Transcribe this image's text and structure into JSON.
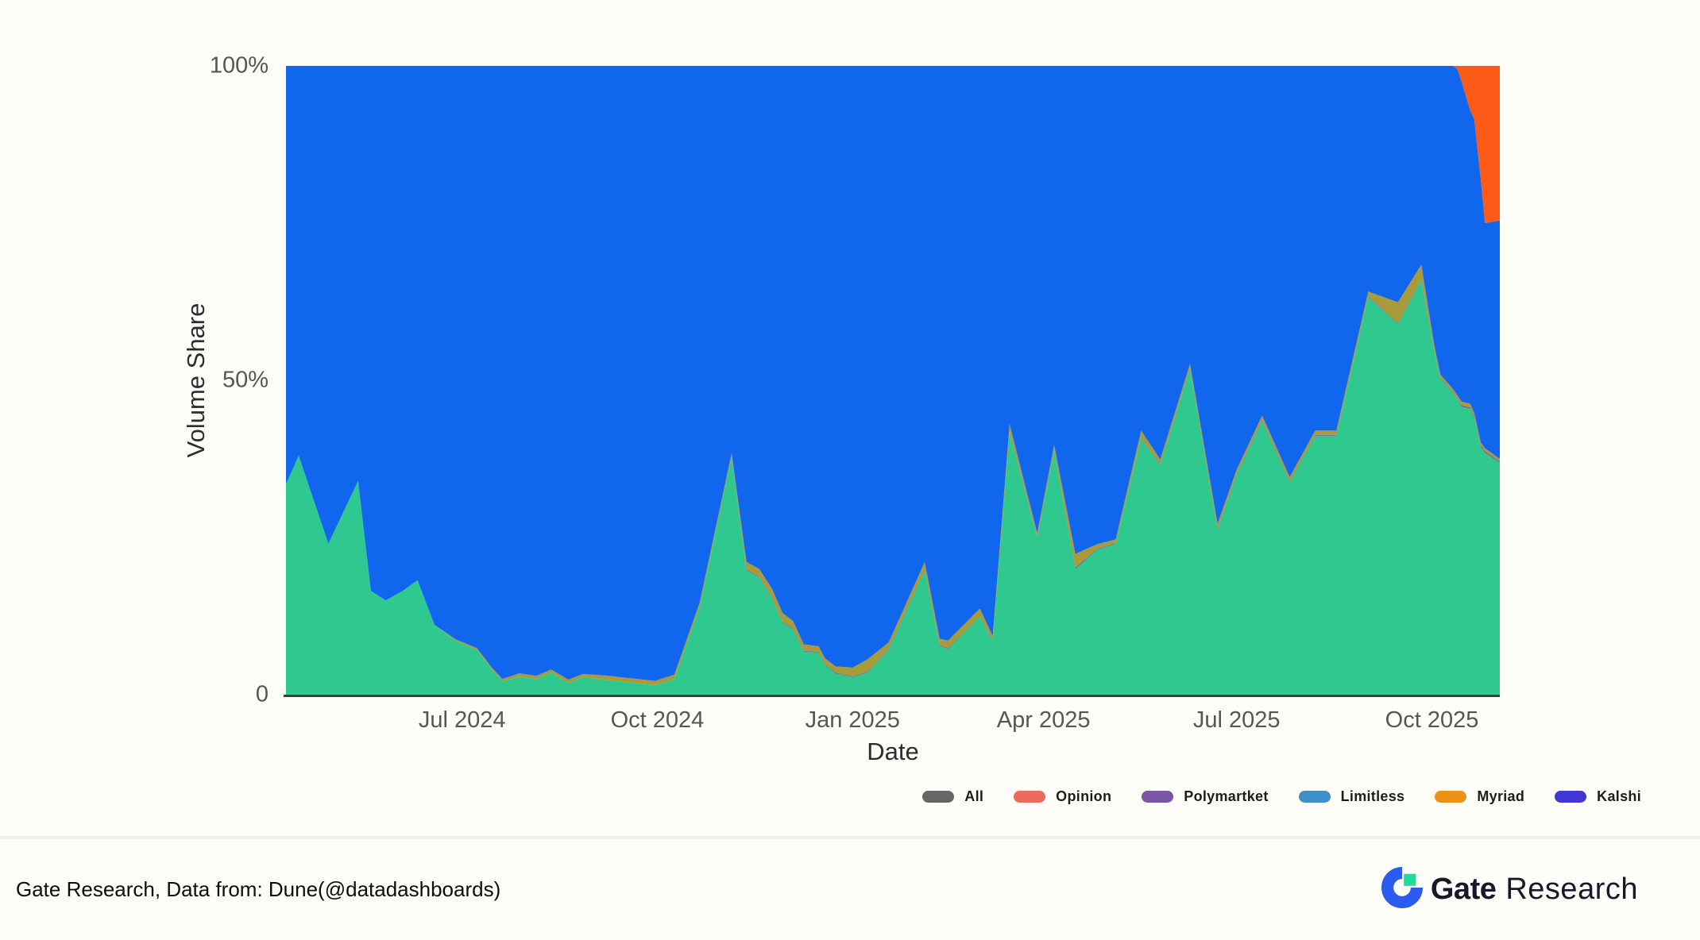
{
  "page": {
    "background_color": "#fffdf8"
  },
  "chart": {
    "y_axis": {
      "title": "Volume Share",
      "ticks": [
        {
          "label": "100%",
          "value": 100
        },
        {
          "label": "50%",
          "value": 50
        },
        {
          "label": "0",
          "value": 0
        }
      ]
    },
    "x_axis": {
      "title": "Date",
      "ticks": [
        {
          "label": "Jul 2024",
          "date": "2024-07-01"
        },
        {
          "label": "Oct 2024",
          "date": "2024-10-01"
        },
        {
          "label": "Jan 2025",
          "date": "2025-01-01"
        },
        {
          "label": "Apr 2025",
          "date": "2025-04-01"
        },
        {
          "label": "Jul 2025",
          "date": "2025-07-01"
        },
        {
          "label": "Oct 2025",
          "date": "2025-10-01"
        }
      ]
    }
  },
  "legend": {
    "items": [
      {
        "label": "All",
        "color": "#666666"
      },
      {
        "label": "Opinion",
        "color": "#ee6a5f"
      },
      {
        "label": "Polymartket",
        "color": "#7d55a6"
      },
      {
        "label": "Limitless",
        "color": "#3e90c6"
      },
      {
        "label": "Myriad",
        "color": "#ec9214"
      },
      {
        "label": "Kalshi",
        "color": "#4336d6"
      }
    ]
  },
  "footer": {
    "source_text": "Gate Research, Data from: Dune(@datadashboards)",
    "brand_bold": "Gate",
    "brand_regular": "Research"
  },
  "chart_data": {
    "type": "area",
    "stacked": true,
    "normalized": "percent",
    "ylim": [
      0,
      100
    ],
    "grid": false,
    "legend_position": "bottom-right",
    "stack_order": "bottom-to-top",
    "x_domain": [
      "2024-04-09",
      "2025-11-02"
    ],
    "x": [
      "2024-04-09",
      "2024-04-15",
      "2024-04-29",
      "2024-05-13",
      "2024-05-19",
      "2024-05-26",
      "2024-06-03",
      "2024-06-10",
      "2024-06-18",
      "2024-06-28",
      "2024-07-08",
      "2024-07-15",
      "2024-07-20",
      "2024-07-28",
      "2024-08-05",
      "2024-08-12",
      "2024-08-20",
      "2024-08-27",
      "2024-09-08",
      "2024-09-30",
      "2024-10-09",
      "2024-10-21",
      "2024-11-05",
      "2024-11-12",
      "2024-11-18",
      "2024-11-24",
      "2024-11-29",
      "2024-12-04",
      "2024-12-09",
      "2024-12-16",
      "2024-12-19",
      "2024-12-24",
      "2025-01-01",
      "2025-01-08",
      "2025-01-18",
      "2025-02-04",
      "2025-02-11",
      "2025-02-15",
      "2025-03-02",
      "2025-03-08",
      "2025-03-16",
      "2025-03-29",
      "2025-04-06",
      "2025-04-16",
      "2025-04-26",
      "2025-05-05",
      "2025-05-17",
      "2025-05-26",
      "2025-06-09",
      "2025-06-22",
      "2025-07-01",
      "2025-07-13",
      "2025-07-26",
      "2025-08-07",
      "2025-08-17",
      "2025-09-01",
      "2025-09-15",
      "2025-09-26",
      "2025-10-02",
      "2025-10-05",
      "2025-10-11",
      "2025-10-13",
      "2025-10-15",
      "2025-10-19",
      "2025-10-21",
      "2025-10-24",
      "2025-10-26",
      "2025-11-02"
    ],
    "series": [
      {
        "name": "Kalshi",
        "color": "#2fc98f",
        "values": [
          33.5,
          38,
          24,
          34,
          16.5,
          15,
          16.5,
          18.2,
          11.1,
          8.6,
          7.1,
          4,
          2.1,
          2.9,
          2.5,
          3.5,
          1.9,
          2.8,
          2.3,
          1.5,
          2.5,
          14,
          37.8,
          19.8,
          18.7,
          15.4,
          11.5,
          10.4,
          6.9,
          6.7,
          4.8,
          3.4,
          2.8,
          3.5,
          7.2,
          19.8,
          7.8,
          7.3,
          12.4,
          8.5,
          41.7,
          25,
          38.8,
          20,
          23,
          24,
          40.8,
          36.5,
          51.8,
          26.3,
          35,
          43.6,
          33.8,
          41.2,
          41.2,
          63.3,
          58.9,
          66,
          54.9,
          50.3,
          48,
          47,
          45.8,
          45.5,
          44,
          39.4,
          38.5,
          36.9
        ]
      },
      {
        "name": "Limitless",
        "color": "#7a4fa0",
        "values": [
          0,
          0,
          0,
          0,
          0,
          0,
          0,
          0,
          0,
          0,
          0,
          0,
          0,
          0,
          0,
          0,
          0,
          0,
          0,
          0,
          0,
          0,
          0.1,
          0.1,
          0.1,
          0.1,
          0.1,
          0.1,
          0.1,
          0.1,
          0.1,
          0.1,
          0.1,
          0.1,
          0.1,
          0.1,
          0.1,
          0.1,
          0.1,
          0.1,
          0.1,
          0.1,
          0.1,
          0.2,
          0.1,
          0.1,
          0.1,
          0.1,
          0.1,
          0.1,
          0.1,
          0.1,
          0.1,
          0.1,
          0.1,
          0.1,
          0.1,
          0.1,
          0.1,
          0.1,
          0.1,
          0.1,
          0.2,
          0.2,
          0.2,
          0.2,
          0.2,
          0.2
        ]
      },
      {
        "name": "Myriad",
        "color": "#a89b3a",
        "values": [
          0,
          0,
          0,
          0,
          0,
          0,
          0,
          0,
          0,
          0.2,
          0.3,
          0.3,
          0.4,
          0.5,
          0.5,
          0.5,
          0.5,
          0.5,
          0.7,
          0.7,
          0.7,
          0.7,
          0.5,
          1.2,
          1.2,
          1.4,
          1.4,
          1.2,
          1,
          0.9,
          0.9,
          1,
          1.4,
          2,
          1,
          1.2,
          1,
          1.2,
          1.2,
          0.7,
          1.2,
          0.6,
          0.8,
          2.2,
          0.8,
          0.6,
          1.1,
          0.8,
          0.7,
          0.8,
          0.7,
          0.7,
          0.7,
          0.7,
          0.7,
          0.7,
          3.4,
          2.3,
          0.8,
          0.5,
          0.5,
          0.5,
          0.6,
          0.6,
          0.6,
          0.5,
          0.5,
          0.4
        ]
      },
      {
        "name": "Polymartket",
        "color": "#1166ee",
        "values": [
          66.5,
          62,
          76,
          66,
          83.5,
          85,
          83.5,
          81.8,
          88.9,
          91.2,
          92.6,
          95.7,
          97.5,
          96.6,
          97,
          96,
          97.6,
          96.7,
          97,
          97.8,
          96.8,
          85.3,
          61.6,
          78.9,
          80,
          83.1,
          87,
          88.3,
          92,
          92.3,
          94.2,
          95.5,
          95.7,
          94.4,
          91.7,
          78.9,
          91.1,
          91.4,
          86.3,
          90.7,
          57,
          74.3,
          60.3,
          77.6,
          76.1,
          75.3,
          58,
          62.6,
          47.4,
          72.8,
          64.2,
          55.6,
          65.4,
          58,
          58,
          35.9,
          37.6,
          31.6,
          44.2,
          49.1,
          51.4,
          51.9,
          50.9,
          46.7,
          46.7,
          41.9,
          35.8,
          37.9
        ]
      },
      {
        "name": "Opinion",
        "color": "#fb5a17",
        "values": [
          0,
          0,
          0,
          0,
          0,
          0,
          0,
          0,
          0,
          0,
          0,
          0,
          0,
          0,
          0,
          0,
          0,
          0,
          0,
          0,
          0,
          0,
          0,
          0,
          0,
          0,
          0,
          0,
          0,
          0,
          0,
          0,
          0,
          0,
          0,
          0,
          0,
          0,
          0,
          0,
          0,
          0,
          0,
          0,
          0,
          0,
          0,
          0,
          0,
          0,
          0,
          0,
          0,
          0,
          0,
          0,
          0,
          0,
          0,
          0,
          0,
          0.5,
          2.5,
          7,
          8.5,
          18,
          25,
          24.6
        ]
      }
    ]
  }
}
